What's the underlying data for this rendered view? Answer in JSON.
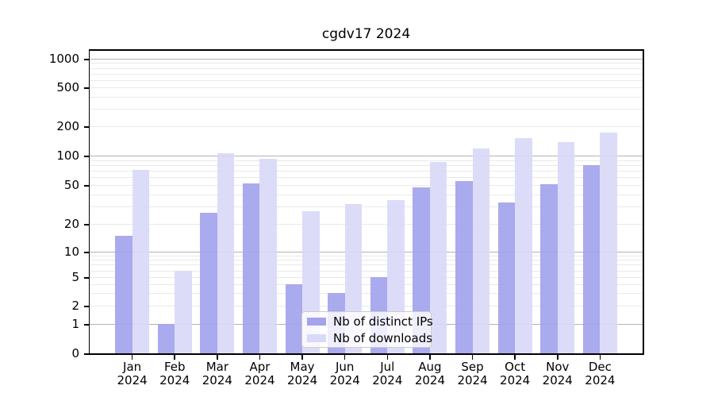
{
  "title": "cgdv17 2024",
  "chart_data": {
    "type": "bar",
    "title": "cgdv17 2024",
    "categories": [
      "Jan 2024",
      "Feb 2024",
      "Mar 2024",
      "Apr 2024",
      "May 2024",
      "Jun 2024",
      "Jul 2024",
      "Aug 2024",
      "Sep 2024",
      "Oct 2024",
      "Nov 2024",
      "Dec 2024"
    ],
    "series": [
      {
        "name": "Nb of distinct IPs",
        "color": "#a3a3ee",
        "values": [
          15,
          1,
          26,
          52,
          4,
          3,
          5,
          47,
          55,
          33,
          51,
          80
        ]
      },
      {
        "name": "Nb of downloads",
        "color": "#d9d9f8",
        "values": [
          72,
          6,
          105,
          92,
          27,
          32,
          35,
          86,
          118,
          150,
          137,
          173
        ]
      }
    ],
    "xlabel": "",
    "ylabel": "",
    "yscale": "symlog",
    "yticks": [
      0,
      1,
      2,
      5,
      10,
      20,
      50,
      100,
      200,
      500,
      1000
    ],
    "ylim": [
      0,
      1500
    ],
    "grid": "horizontal, major lines at 1/10/100/1000, minor log lines",
    "legend_position": "lower center"
  },
  "colors": {
    "background": "#ffffff",
    "ips_bar": "#a3a3ee",
    "downloads_bar": "#d9d9f8",
    "grid_major": "#b2b2b2",
    "grid_minor": "#e9e9e9",
    "axis": "#000000",
    "legend_border": "#cccccc",
    "legend_bg": "rgba(255,255,255,0.8)",
    "text": "#000000"
  }
}
